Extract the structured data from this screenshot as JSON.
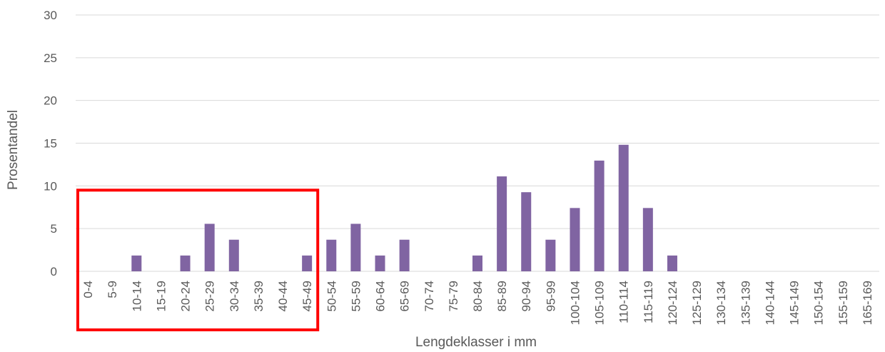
{
  "chart_data": {
    "type": "bar",
    "xlabel": "Lengdeklasser i mm",
    "ylabel": "Prosentandel",
    "ylim": [
      0,
      30
    ],
    "yticks": [
      0,
      5,
      10,
      15,
      20,
      25,
      30
    ],
    "grid": true,
    "categories": [
      "0-4",
      "5-9",
      "10-14",
      "15-19",
      "20-24",
      "25-29",
      "30-34",
      "35-39",
      "40-44",
      "45-49",
      "50-54",
      "55-59",
      "60-64",
      "65-69",
      "70-74",
      "75-79",
      "80-84",
      "85-89",
      "90-94",
      "95-99",
      "100-104",
      "105-109",
      "110-114",
      "115-119",
      "120-124",
      "125-129",
      "130-134",
      "135-139",
      "140-144",
      "145-149",
      "150-154",
      "155-159",
      "165-169"
    ],
    "series": [
      {
        "values": [
          0,
          0,
          1.85,
          0,
          1.85,
          5.56,
          3.7,
          0,
          0,
          1.85,
          3.7,
          5.56,
          1.85,
          3.7,
          0,
          0,
          1.85,
          11.11,
          9.26,
          3.7,
          7.41,
          12.96,
          14.81,
          7.41,
          1.85,
          0,
          0,
          0,
          0,
          0,
          0,
          0,
          0
        ]
      }
    ],
    "bar_color": "#8064a2",
    "highlight": {
      "from_category": "0-4",
      "to_category": "45-49",
      "color": "#ff0000"
    }
  }
}
